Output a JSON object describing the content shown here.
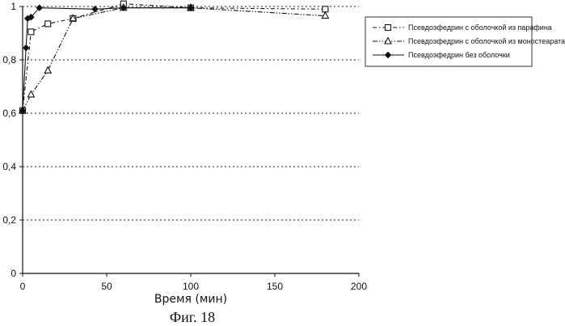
{
  "chart_data": {
    "type": "line",
    "xlabel": "Время (мин)",
    "caption": "Фиг. 18",
    "xlim": [
      0,
      200
    ],
    "ylim": [
      0,
      1
    ],
    "x_ticks": [
      "0",
      "50",
      "100",
      "150",
      "200"
    ],
    "y_ticks": [
      "0",
      "0,2",
      "0,4",
      "0,6",
      "0,8",
      "1"
    ],
    "grid": "horizontal-dotted",
    "legend_position": "top-right",
    "series": [
      {
        "name": "Псевдоэфедрин с оболочкой из парафина",
        "marker": "square",
        "line": "dash-dot",
        "color": "#111111",
        "points": [
          [
            0,
            0.61
          ],
          [
            5,
            0.905
          ],
          [
            15,
            0.935
          ],
          [
            30,
            0.955
          ],
          [
            60,
            1.01
          ],
          [
            100,
            0.995
          ],
          [
            180,
            0.99
          ]
        ]
      },
      {
        "name": "Псевдоэфедрин с оболочкой из моностеарата",
        "marker": "triangle",
        "line": "dash-dot-dot",
        "color": "#111111",
        "points": [
          [
            0,
            0.61
          ],
          [
            5,
            0.67
          ],
          [
            15,
            0.76
          ],
          [
            30,
            0.955
          ],
          [
            60,
            0.995
          ],
          [
            100,
            0.995
          ],
          [
            180,
            0.965
          ]
        ]
      },
      {
        "name": "Псевдоэфедрин без оболочки",
        "marker": "diamond",
        "line": "solid",
        "color": "#111111",
        "points": [
          [
            0,
            0.61
          ],
          [
            2,
            0.845
          ],
          [
            3,
            0.955
          ],
          [
            5,
            0.96
          ],
          [
            10,
            0.995
          ],
          [
            43,
            0.99
          ],
          [
            60,
            0.995
          ],
          [
            100,
            0.995
          ]
        ]
      }
    ]
  }
}
